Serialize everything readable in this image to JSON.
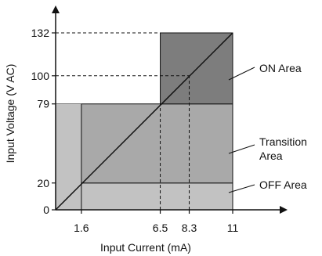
{
  "chart_data": {
    "type": "area",
    "title": "",
    "xlabel": "Input Current (mA)",
    "ylabel": "Input Voltage (V AC)",
    "xlim": [
      0,
      11
    ],
    "ylim": [
      0,
      132
    ],
    "x_ticks": [
      {
        "value": 1.6,
        "label": "1.6"
      },
      {
        "value": 6.5,
        "label": "6.5"
      },
      {
        "value": 8.3,
        "label": "8.3"
      },
      {
        "value": 11,
        "label": "11"
      }
    ],
    "y_ticks": [
      {
        "value": 0,
        "label": "0"
      },
      {
        "value": 20,
        "label": "20"
      },
      {
        "value": 79,
        "label": "79"
      },
      {
        "value": 100,
        "label": "100"
      },
      {
        "value": 132,
        "label": "132"
      }
    ],
    "regions": [
      {
        "name": "OFF Area",
        "label": "OFF Area",
        "x": [
          0,
          11
        ],
        "y": [
          0,
          20
        ],
        "color": "#c2c2c2"
      },
      {
        "name": "Transition Area",
        "label": "Transition\nArea",
        "x": [
          0,
          11
        ],
        "y": [
          20,
          79
        ],
        "color": "#a9a9a9"
      },
      {
        "name": "ON Area",
        "label": "ON Area",
        "x": [
          6.5,
          11
        ],
        "y": [
          79,
          132
        ],
        "color": "#7d7d7d"
      }
    ],
    "overlay_regions": [
      {
        "x": [
          0,
          1.6
        ],
        "y": [
          0,
          79
        ],
        "color": "#c2c2c2"
      }
    ],
    "reference_lines": [
      {
        "type": "vertical",
        "x": 1.6,
        "y_range": [
          0,
          79
        ],
        "style": "solid"
      },
      {
        "type": "vertical",
        "x": 6.5,
        "y_range": [
          0,
          79
        ],
        "style": "dashed"
      },
      {
        "type": "vertical",
        "x": 8.3,
        "y_range": [
          0,
          100
        ],
        "style": "dashed"
      },
      {
        "type": "horizontal",
        "y": 100,
        "x_range": [
          0,
          8.3
        ],
        "style": "dashed"
      },
      {
        "type": "horizontal",
        "y": 132,
        "x_range": [
          0,
          6.5
        ],
        "style": "dashed"
      }
    ],
    "line": {
      "x": [
        0,
        11
      ],
      "y": [
        0,
        132
      ]
    },
    "grid": false,
    "legend": "none"
  }
}
